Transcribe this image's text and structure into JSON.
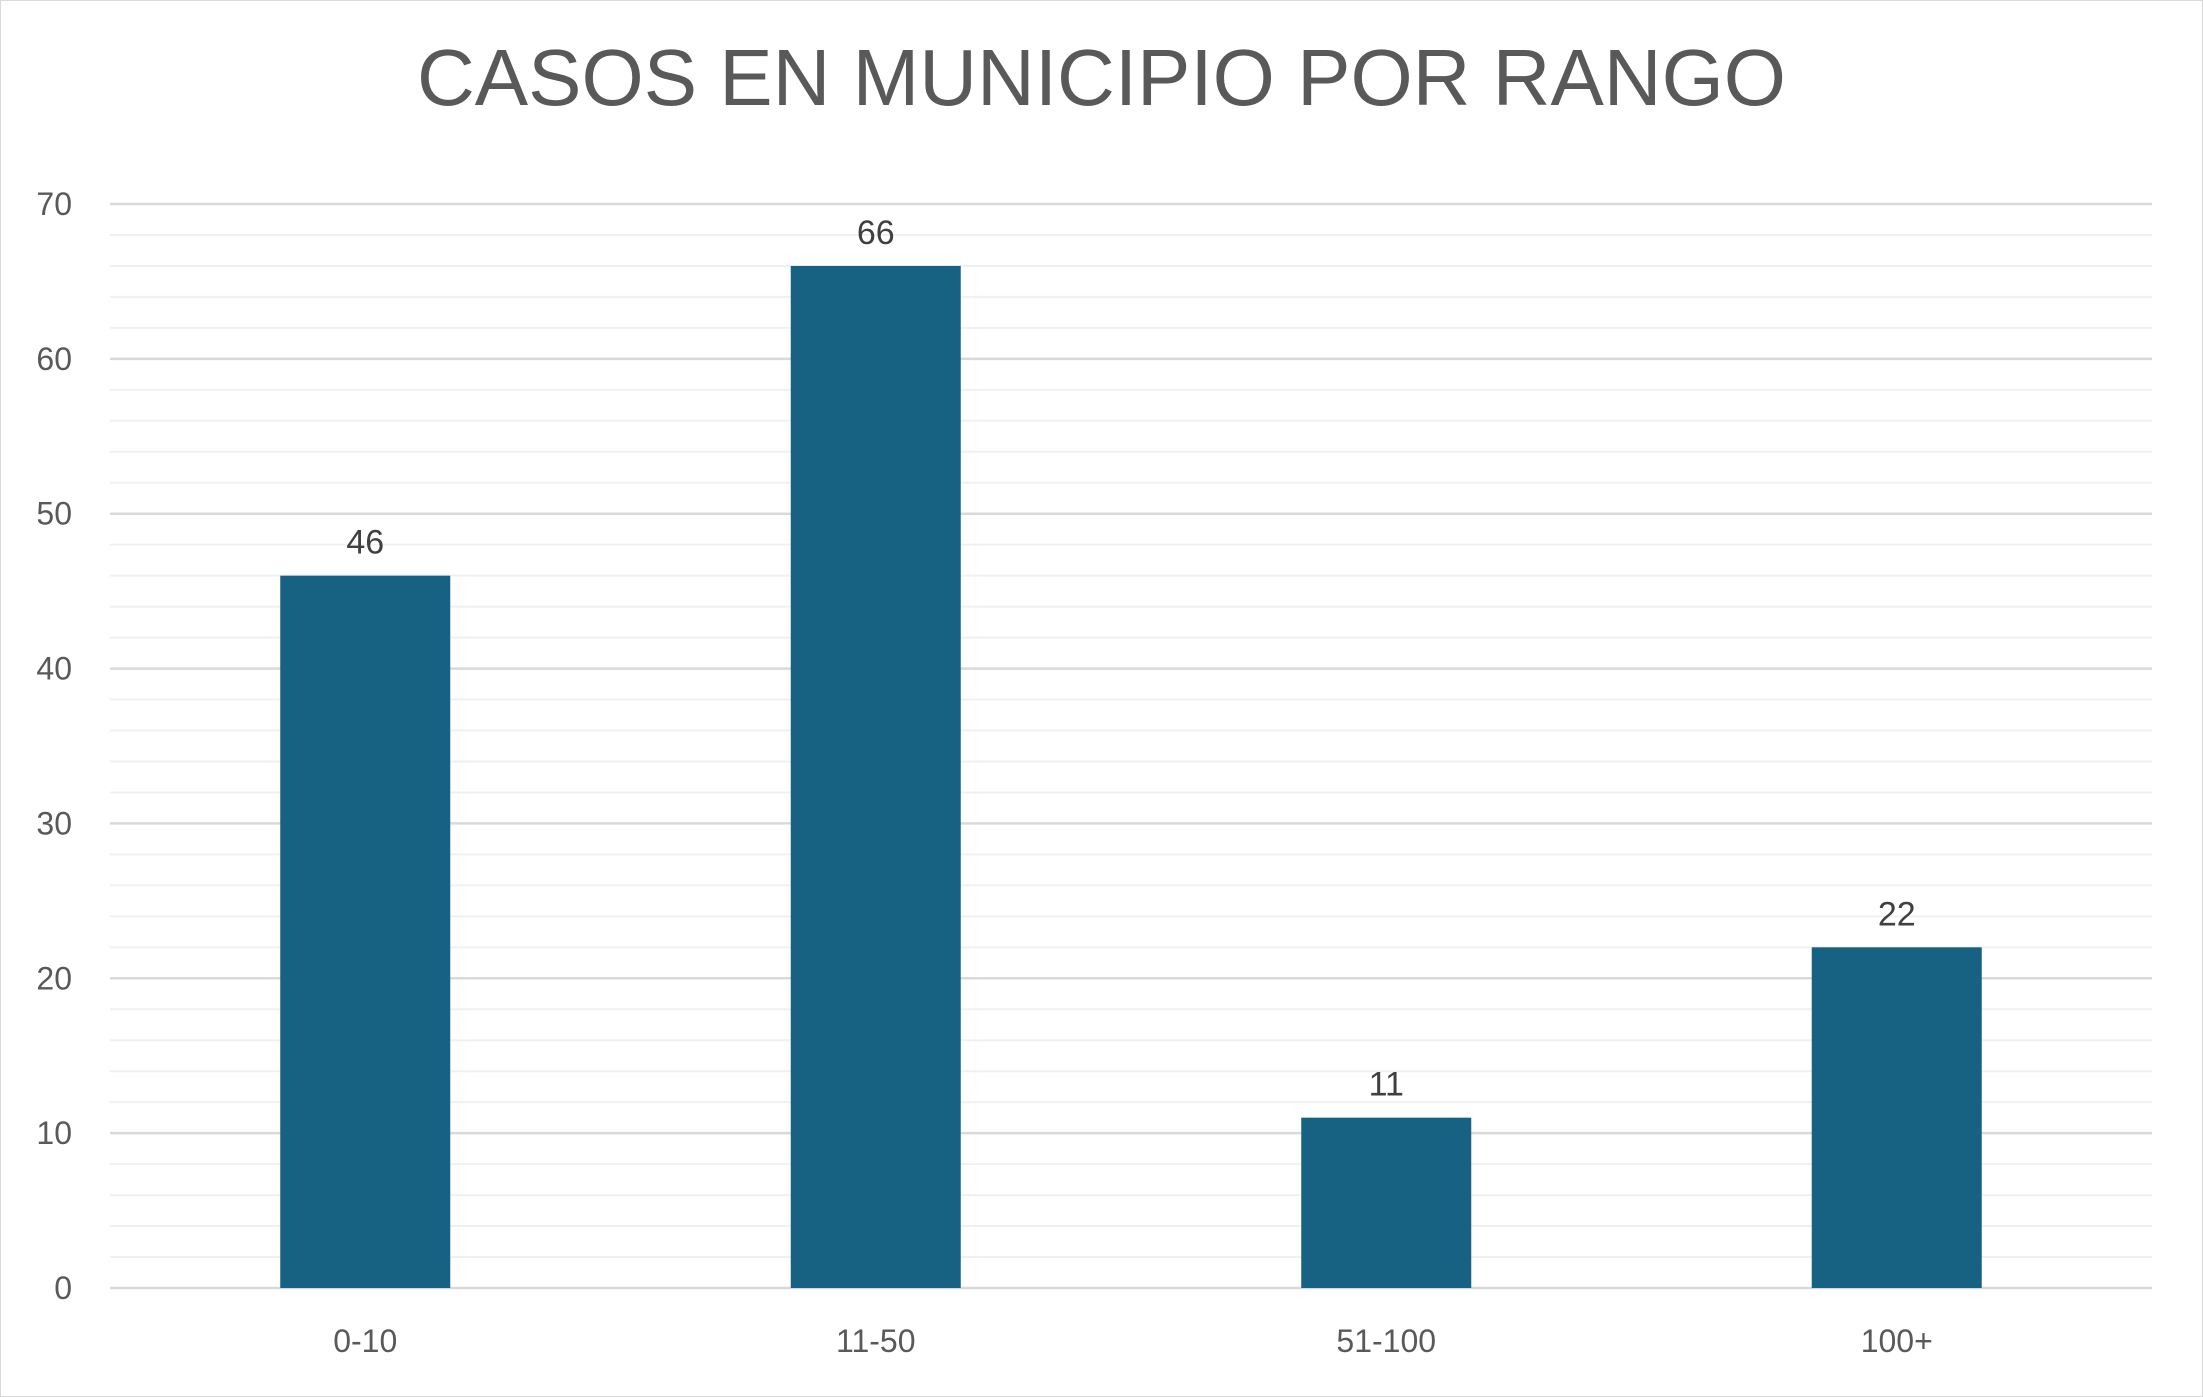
{
  "chart_data": {
    "type": "bar",
    "title": "CASOS EN MUNICIPIO POR RANGO",
    "xlabel": "",
    "ylabel": "",
    "categories": [
      "0-10",
      "11-50",
      "51-100",
      "100+"
    ],
    "values": [
      46,
      66,
      11,
      22
    ],
    "data_labels": [
      "46",
      "66",
      "11",
      "22"
    ],
    "ylim": [
      0,
      70
    ],
    "y_ticks": [
      "0",
      "10",
      "20",
      "30",
      "40",
      "50",
      "60",
      "70"
    ],
    "grid": true,
    "legend": "none",
    "bar_color": "#176183",
    "gridline_color": "#d9d9d9",
    "minor_gridline_color": "#f0f0f0"
  }
}
